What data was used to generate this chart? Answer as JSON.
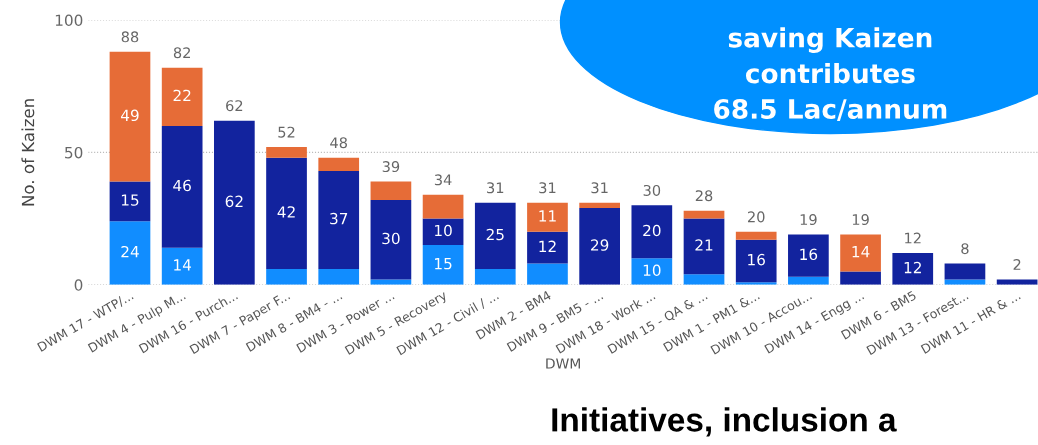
{
  "chart_data": {
    "type": "bar",
    "stacked": true,
    "xlabel": "DWM",
    "ylabel": "No. of Kaizen",
    "categories": [
      "DWM 17 - WTP/...",
      "DWM 4 - Pulp M...",
      "DWM 16 - Purch...",
      "DWM 7 - Paper F...",
      "DWM 8 - BM4 - ...",
      "DWM 3 - Power ...",
      "DWM 5 - Recovery",
      "DWM 12 - Civil / ...",
      "DWM 2 - BM4",
      "DWM 9 - BM5 - ...",
      "DWM 18 - Work ...",
      "DWM 15 - QA & ...",
      "DWM 1 - PM1 &...",
      "DWM 10 - Accou...",
      "DWM 14 - Engg ...",
      "DWM 6 - BM5",
      "DWM 13 - Forest...",
      "DWM 11 - HR & ..."
    ],
    "series": [
      {
        "color": "#118dff",
        "values": [
          24,
          14,
          0,
          6,
          6,
          2,
          15,
          6,
          8,
          0,
          10,
          4,
          1,
          3,
          0,
          0,
          2,
          0
        ],
        "value_labels": [
          "24",
          "14",
          null,
          null,
          null,
          null,
          "15",
          null,
          null,
          null,
          "10",
          null,
          null,
          null,
          null,
          null,
          null,
          null
        ]
      },
      {
        "color": "#12239e",
        "values": [
          15,
          46,
          62,
          42,
          37,
          30,
          10,
          25,
          12,
          29,
          20,
          21,
          16,
          16,
          5,
          12,
          6,
          2
        ],
        "value_labels": [
          "15",
          "46",
          "62",
          "42",
          "37",
          "30",
          "10",
          "25",
          "12",
          "29",
          "20",
          "21",
          "16",
          "16",
          null,
          "12",
          null,
          null
        ]
      },
      {
        "color": "#e66c37",
        "values": [
          49,
          22,
          0,
          4,
          5,
          7,
          9,
          0,
          11,
          2,
          0,
          3,
          3,
          0,
          14,
          0,
          0,
          0
        ],
        "value_labels": [
          "49",
          "22",
          null,
          null,
          null,
          null,
          null,
          null,
          "11",
          null,
          null,
          null,
          null,
          null,
          "14",
          null,
          null,
          null
        ]
      }
    ],
    "totals": [
      "88",
      "82",
      "62",
      "52",
      "48",
      "39",
      "34",
      "31",
      "31",
      "31",
      "30",
      "28",
      "20",
      "19",
      "19",
      "12",
      "8",
      "2"
    ],
    "ylim": [
      0,
      100
    ],
    "yticks": [
      0,
      50,
      100
    ],
    "grid": "y",
    "annotations": [
      "saving Kaizen\ncontributes\n68.5 Lac/annum",
      "Initiatives, inclusion a"
    ]
  }
}
